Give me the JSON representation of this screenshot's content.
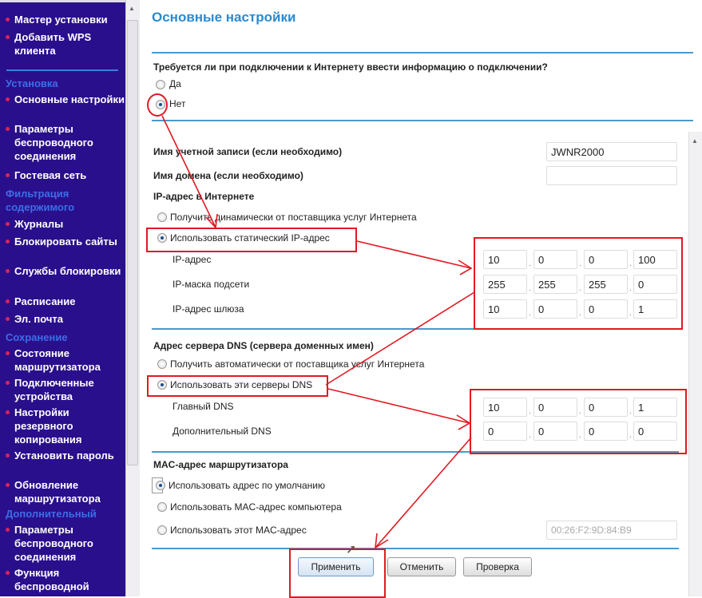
{
  "sidebar": {
    "items": [
      {
        "type": "item",
        "label": "Мастер установки"
      },
      {
        "type": "item",
        "label": "Добавить WPS клиента"
      },
      {
        "type": "head",
        "label": "Установка"
      },
      {
        "type": "item",
        "label": "Основные настройки"
      },
      {
        "type": "item",
        "label": "Параметры беспроводного соединения"
      },
      {
        "type": "item",
        "label": "Гостевая сеть"
      },
      {
        "type": "head",
        "label": "Фильтрация содержимого"
      },
      {
        "type": "item",
        "label": "Журналы"
      },
      {
        "type": "item",
        "label": "Блокировать сайты"
      },
      {
        "type": "item",
        "label": "Службы блокировки"
      },
      {
        "type": "item",
        "label": "Расписание"
      },
      {
        "type": "item",
        "label": "Эл. почта"
      },
      {
        "type": "head",
        "label": "Сохранение"
      },
      {
        "type": "item",
        "label": "Состояние маршрутизатора"
      },
      {
        "type": "item",
        "label": "Подключенные устройства"
      },
      {
        "type": "item",
        "label": "Настройки резервного копирования"
      },
      {
        "type": "item",
        "label": "Установить пароль"
      },
      {
        "type": "item",
        "label": "Обновление маршрутизатора"
      },
      {
        "type": "head",
        "label": "Дополнительный"
      },
      {
        "type": "item",
        "label": "Параметры беспроводного соединения"
      },
      {
        "type": "item",
        "label": "Функция беспроводной"
      }
    ]
  },
  "page": {
    "title": "Основные настройки",
    "question": "Требуется ли при подключении к Интернету ввести информацию о подключении?",
    "yes": "Да",
    "no": "Нет",
    "login_required": false
  },
  "account": {
    "label": "Имя учетной записи (если необходимо)",
    "value": "JWNR2000"
  },
  "domain": {
    "label": "Имя домена (если необходимо)",
    "value": ""
  },
  "ip": {
    "header": "IP-адрес в Интернете",
    "dynamic": "Получить динамически от поставщика услуг Интернета",
    "static": "Использовать статический IP-адрес",
    "selected": "static",
    "rows": [
      {
        "label": "IP-адрес",
        "octets": [
          "10",
          "0",
          "0",
          "100"
        ]
      },
      {
        "label": "IP-маска подсети",
        "octets": [
          "255",
          "255",
          "255",
          "0"
        ]
      },
      {
        "label": "IP-адрес шлюза",
        "octets": [
          "10",
          "0",
          "0",
          "1"
        ]
      }
    ]
  },
  "dns": {
    "header": "Адрес сервера DNS (сервера доменных имен)",
    "auto": "Получить автоматически от поставщика услуг Интернета",
    "manual": "Использовать эти серверы DNS",
    "selected": "manual",
    "rows": [
      {
        "label": "Главный DNS",
        "octets": [
          "10",
          "0",
          "0",
          "1"
        ]
      },
      {
        "label": "Дополнительный DNS",
        "octets": [
          "0",
          "0",
          "0",
          "0"
        ]
      }
    ]
  },
  "mac": {
    "header": "MAC-адрес маршрутизатора",
    "default": "Использовать адрес по умолчанию",
    "computer": "Использовать MAC-адрес компьютера",
    "custom": "Использовать этот MAC-адрес",
    "selected": "default",
    "value": "00:26:F2:9D:84:B9"
  },
  "buttons": {
    "apply": "Применить",
    "cancel": "Отменить",
    "test": "Проверка"
  },
  "colors": {
    "sidebar": "#2a0f8c",
    "accent": "#2a8ad0",
    "annotation": "#e01a22"
  }
}
